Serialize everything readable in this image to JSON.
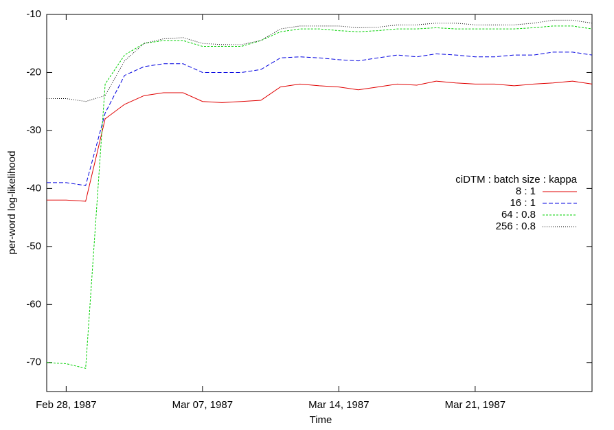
{
  "chart_data": {
    "type": "line",
    "xlabel": "Time",
    "ylabel": "per-word log-likelihood",
    "legend_title": "ciDTM : batch size : kappa",
    "legend": "right",
    "x": [
      "1987-02-27",
      "1987-02-28",
      "1987-03-01",
      "1987-03-02",
      "1987-03-03",
      "1987-03-04",
      "1987-03-05",
      "1987-03-06",
      "1987-03-07",
      "1987-03-08",
      "1987-03-09",
      "1987-03-10",
      "1987-03-11",
      "1987-03-12",
      "1987-03-13",
      "1987-03-14",
      "1987-03-15",
      "1987-03-16",
      "1987-03-17",
      "1987-03-18",
      "1987-03-19",
      "1987-03-20",
      "1987-03-21",
      "1987-03-22",
      "1987-03-23",
      "1987-03-24",
      "1987-03-25",
      "1987-03-26",
      "1987-03-27"
    ],
    "series": [
      {
        "name": "8 : 1",
        "color": "#e00000",
        "style": "solid",
        "values": [
          -42,
          -42,
          -42.2,
          -28,
          -25.5,
          -24,
          -23.5,
          -23.5,
          -25,
          -25.2,
          -25,
          -24.8,
          -22.5,
          -22,
          -22.3,
          -22.5,
          -23,
          -22.5,
          -22,
          -22.2,
          -21.5,
          -21.8,
          -22,
          -22,
          -22.3,
          -22,
          -21.8,
          -21.5,
          -22
        ]
      },
      {
        "name": "16 : 1",
        "color": "#0000e0",
        "style": "dashed",
        "values": [
          -39,
          -39,
          -39.5,
          -27,
          -20.5,
          -19,
          -18.5,
          -18.5,
          -20,
          -20,
          -20,
          -19.5,
          -17.5,
          -17.3,
          -17.5,
          -17.8,
          -18,
          -17.5,
          -17,
          -17.3,
          -16.8,
          -17,
          -17.3,
          -17.3,
          -17,
          -17,
          -16.5,
          -16.5,
          -17
        ]
      },
      {
        "name": "64 : 0.8",
        "color": "#00d000",
        "style": "short-dashed",
        "values": [
          -70,
          -70.2,
          -71,
          -22,
          -17,
          -15,
          -14.5,
          -14.5,
          -15.5,
          -15.5,
          -15.5,
          -14.5,
          -13,
          -12.5,
          -12.5,
          -12.8,
          -13,
          -12.8,
          -12.5,
          -12.5,
          -12.3,
          -12.5,
          -12.5,
          -12.5,
          -12.5,
          -12.3,
          -12,
          -12,
          -12.5
        ]
      },
      {
        "name": "256 : 0.8",
        "color": "#000000",
        "style": "dotted",
        "values": [
          -24.5,
          -24.5,
          -25,
          -24,
          -18,
          -15,
          -14.2,
          -14,
          -15,
          -15.2,
          -15.2,
          -14.5,
          -12.5,
          -12,
          -12,
          -12,
          -12.3,
          -12.2,
          -11.8,
          -11.8,
          -11.5,
          -11.5,
          -11.8,
          -11.8,
          -11.8,
          -11.5,
          -11,
          -11,
          -11.5
        ]
      }
    ],
    "xlim": [
      "1987-02-27",
      "1987-03-27"
    ],
    "xticks": [
      {
        "value": "1987-02-28",
        "label": "Feb 28, 1987"
      },
      {
        "value": "1987-03-07",
        "label": "Mar 07, 1987"
      },
      {
        "value": "1987-03-14",
        "label": "Mar 14, 1987"
      },
      {
        "value": "1987-03-21",
        "label": "Mar 21, 1987"
      }
    ],
    "ylim": [
      -75,
      -10
    ],
    "yticks": [
      -70,
      -60,
      -50,
      -40,
      -30,
      -20,
      -10
    ],
    "grid": false
  }
}
